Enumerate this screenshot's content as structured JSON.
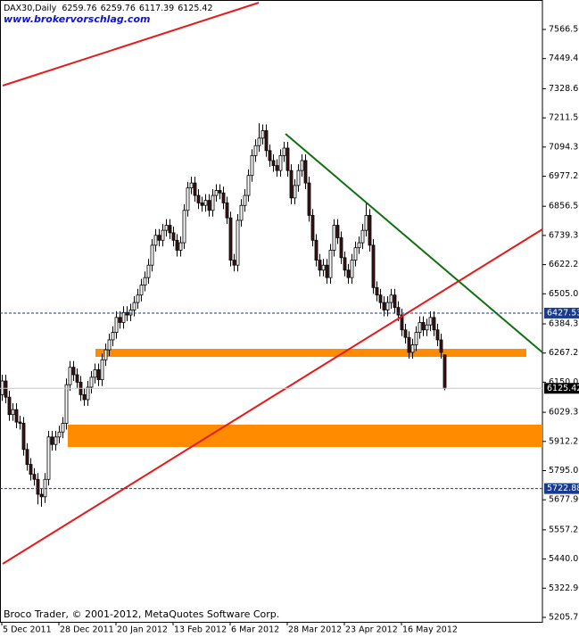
{
  "chart_data": {
    "type": "candlestick",
    "title": "DAX30,Daily",
    "watermark": "www.brokervorschlag.com",
    "footer": "Broco Trader, © 2001-2012, MetaQuotes Software Corp.",
    "up_color": "#ffffff",
    "down_color": "#3a1414",
    "wick_color": "#000000",
    "categories": [
      "5 Dec 2011",
      null,
      null,
      null,
      null,
      null,
      null,
      null,
      null,
      null,
      null,
      null,
      null,
      null,
      null,
      null,
      "28 Dec 2011",
      null,
      null,
      null,
      null,
      null,
      null,
      null,
      null,
      null,
      null,
      null,
      null,
      null,
      null,
      null,
      "20 Jan 2012",
      null,
      null,
      null,
      null,
      null,
      null,
      null,
      null,
      null,
      null,
      null,
      null,
      null,
      null,
      null,
      "13 Feb 2012",
      null,
      null,
      null,
      null,
      null,
      null,
      null,
      null,
      null,
      null,
      null,
      null,
      null,
      null,
      null,
      "6 Mar 2012",
      null,
      null,
      null,
      null,
      null,
      null,
      null,
      null,
      null,
      null,
      null,
      null,
      null,
      null,
      null,
      "28 Mar 2012",
      null,
      null,
      null,
      null,
      null,
      null,
      null,
      null,
      null,
      null,
      null,
      null,
      null,
      null,
      null,
      "23 Apr 2012",
      null,
      null,
      null,
      null,
      null,
      null,
      null,
      null,
      null,
      null,
      null,
      null,
      null,
      null,
      null,
      "16 May 2012",
      null,
      null,
      null,
      null,
      null,
      null,
      null,
      null,
      null,
      null,
      null,
      null
    ],
    "open": [
      6100,
      6155,
      6090,
      6020,
      6040,
      5990,
      5985,
      5880,
      5820,
      5780,
      5760,
      5700,
      5690,
      5760,
      5930,
      5900,
      5930,
      5950,
      5985,
      6140,
      6210,
      6180,
      6150,
      6100,
      6080,
      6130,
      6170,
      6200,
      6160,
      6240,
      6280,
      6320,
      6350,
      6410,
      6390,
      6430,
      6420,
      6440,
      6470,
      6500,
      6540,
      6570,
      6620,
      6700,
      6740,
      6720,
      6760,
      6780,
      6750,
      6720,
      6680,
      6710,
      6840,
      6930,
      6950,
      6900,
      6870,
      6860,
      6880,
      6840,
      6900,
      6920,
      6910,
      6870,
      6810,
      6640,
      6620,
      6800,
      6860,
      6900,
      6980,
      7060,
      7100,
      7130,
      7160,
      7080,
      7040,
      7020,
      7000,
      7060,
      7090,
      7000,
      6890,
      6940,
      7000,
      7040,
      6950,
      6820,
      6720,
      6640,
      6600,
      6620,
      6570,
      6680,
      6780,
      6730,
      6650,
      6600,
      6570,
      6640,
      6690,
      6710,
      6760,
      6820,
      6700,
      6530,
      6500,
      6470,
      6440,
      6470,
      6500,
      6450,
      6420,
      6360,
      6330,
      6270,
      6300,
      6350,
      6390,
      6360,
      6380,
      6410,
      6360,
      6320,
      6259.76
    ],
    "high": [
      6180,
      6180,
      6115,
      6065,
      6065,
      6015,
      6010,
      5905,
      5845,
      5805,
      5785,
      5725,
      5785,
      5955,
      5955,
      5955,
      5975,
      6010,
      6165,
      6235,
      6235,
      6205,
      6175,
      6125,
      6155,
      6195,
      6225,
      6225,
      6265,
      6305,
      6345,
      6375,
      6435,
      6435,
      6455,
      6455,
      6465,
      6495,
      6525,
      6565,
      6595,
      6645,
      6725,
      6765,
      6765,
      6785,
      6805,
      6805,
      6775,
      6745,
      6735,
      6865,
      6955,
      6975,
      6975,
      6925,
      6895,
      6905,
      6905,
      6925,
      6945,
      6945,
      6935,
      6895,
      6835,
      6665,
      6825,
      6885,
      6925,
      7005,
      7085,
      7125,
      7190,
      7185,
      7185,
      7105,
      7065,
      7045,
      7085,
      7115,
      7115,
      7025,
      6965,
      7025,
      7065,
      7065,
      6975,
      6845,
      6745,
      6665,
      6645,
      6645,
      6705,
      6805,
      6805,
      6755,
      6675,
      6625,
      6665,
      6715,
      6735,
      6785,
      6870,
      6845,
      6725,
      6555,
      6525,
      6495,
      6495,
      6525,
      6525,
      6475,
      6445,
      6385,
      6355,
      6325,
      6375,
      6415,
      6415,
      6405,
      6435,
      6435,
      6385,
      6345,
      6259.76
    ],
    "low": [
      6075,
      6065,
      5995,
      5995,
      5965,
      5960,
      5855,
      5795,
      5755,
      5735,
      5660,
      5650,
      5665,
      5735,
      5875,
      5875,
      5905,
      5925,
      5960,
      6115,
      6155,
      6125,
      6075,
      6055,
      6055,
      6105,
      6145,
      6135,
      6135,
      6215,
      6255,
      6295,
      6325,
      6365,
      6365,
      6395,
      6395,
      6415,
      6445,
      6475,
      6515,
      6545,
      6595,
      6675,
      6695,
      6695,
      6735,
      6725,
      6695,
      6655,
      6655,
      6685,
      6815,
      6905,
      6875,
      6845,
      6835,
      6835,
      6815,
      6815,
      6875,
      6885,
      6845,
      6785,
      6615,
      6595,
      6595,
      6775,
      6835,
      6875,
      6955,
      7035,
      7075,
      7105,
      7055,
      7015,
      6995,
      6975,
      6975,
      7035,
      6975,
      6865,
      6865,
      6915,
      6975,
      6925,
      6795,
      6695,
      6615,
      6575,
      6575,
      6545,
      6545,
      6655,
      6705,
      6625,
      6575,
      6545,
      6545,
      6615,
      6665,
      6685,
      6735,
      6675,
      6505,
      6475,
      6445,
      6415,
      6415,
      6445,
      6425,
      6395,
      6335,
      6305,
      6245,
      6245,
      6275,
      6325,
      6335,
      6335,
      6355,
      6335,
      6295,
      6245,
      6117.39
    ],
    "close": [
      6155,
      6090,
      6020,
      6040,
      5990,
      5985,
      5880,
      5820,
      5780,
      5760,
      5700,
      5690,
      5760,
      5930,
      5900,
      5930,
      5950,
      5985,
      6140,
      6210,
      6180,
      6150,
      6100,
      6080,
      6130,
      6170,
      6200,
      6160,
      6240,
      6280,
      6320,
      6350,
      6410,
      6390,
      6430,
      6420,
      6440,
      6470,
      6500,
      6540,
      6570,
      6620,
      6700,
      6740,
      6720,
      6760,
      6780,
      6750,
      6720,
      6680,
      6710,
      6840,
      6930,
      6950,
      6900,
      6870,
      6860,
      6880,
      6840,
      6900,
      6920,
      6910,
      6870,
      6810,
      6640,
      6620,
      6800,
      6860,
      6900,
      6980,
      7060,
      7100,
      7130,
      7160,
      7080,
      7040,
      7020,
      7000,
      7060,
      7090,
      7000,
      6890,
      6940,
      7000,
      7040,
      6950,
      6820,
      6720,
      6640,
      6600,
      6620,
      6570,
      6680,
      6780,
      6730,
      6650,
      6600,
      6570,
      6640,
      6690,
      6710,
      6760,
      6820,
      6700,
      6530,
      6500,
      6470,
      6440,
      6470,
      6500,
      6450,
      6420,
      6360,
      6330,
      6270,
      6300,
      6350,
      6390,
      6360,
      6380,
      6410,
      6360,
      6320,
      6270,
      6125.42
    ],
    "levels": [
      6427.53,
      5722.88
    ],
    "ylim": [
      5187.84,
      7684.72
    ],
    "yticks": [
      {
        "value": 7566.5,
        "label": "7566.50"
      },
      7449.45,
      7328.65,
      {
        "value": 7211.5,
        "label": "7211.50"
      },
      7094.35,
      {
        "value": 6977.2,
        "label": "6977.20"
      },
      {
        "value": 6856.5,
        "label": "6856.50"
      },
      6739.35,
      {
        "value": 6622.2,
        "label": "6622.20"
      },
      6505.05,
      6384.35,
      {
        "value": 6267.2,
        "label": "6267.20"
      },
      6150.05,
      6029.35,
      {
        "value": 5912.2,
        "label": "5912.20"
      },
      5795.05,
      {
        "value": 5677.9,
        "label": "5677.90"
      },
      {
        "value": 5557.2,
        "label": "5557.20"
      },
      5440.05,
      {
        "value": 5322.9,
        "label": "5322.90"
      },
      5205.75
    ]
  }
}
